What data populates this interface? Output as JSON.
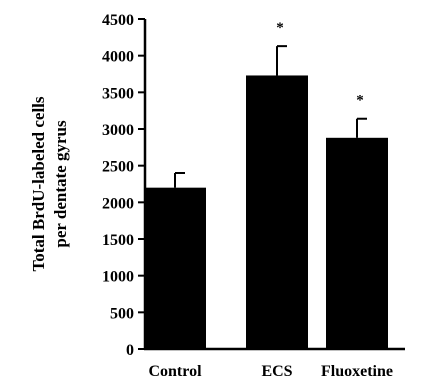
{
  "chart_data": {
    "type": "bar",
    "categories": [
      "Control",
      "ECS",
      "Fluoxetine"
    ],
    "values": [
      2200,
      3730,
      2880
    ],
    "error_upper": [
      2400,
      4130,
      3140
    ],
    "annotations": [
      "",
      "*",
      "*"
    ],
    "ylabel_lines": [
      "Total BrdU-labeled cells",
      "per dentate gyrus"
    ],
    "ylim": [
      0,
      4500
    ],
    "yticks": [
      0,
      500,
      1000,
      1500,
      2000,
      2500,
      3000,
      3500,
      4000,
      4500
    ],
    "grid": false,
    "bar_color": "#000000"
  }
}
